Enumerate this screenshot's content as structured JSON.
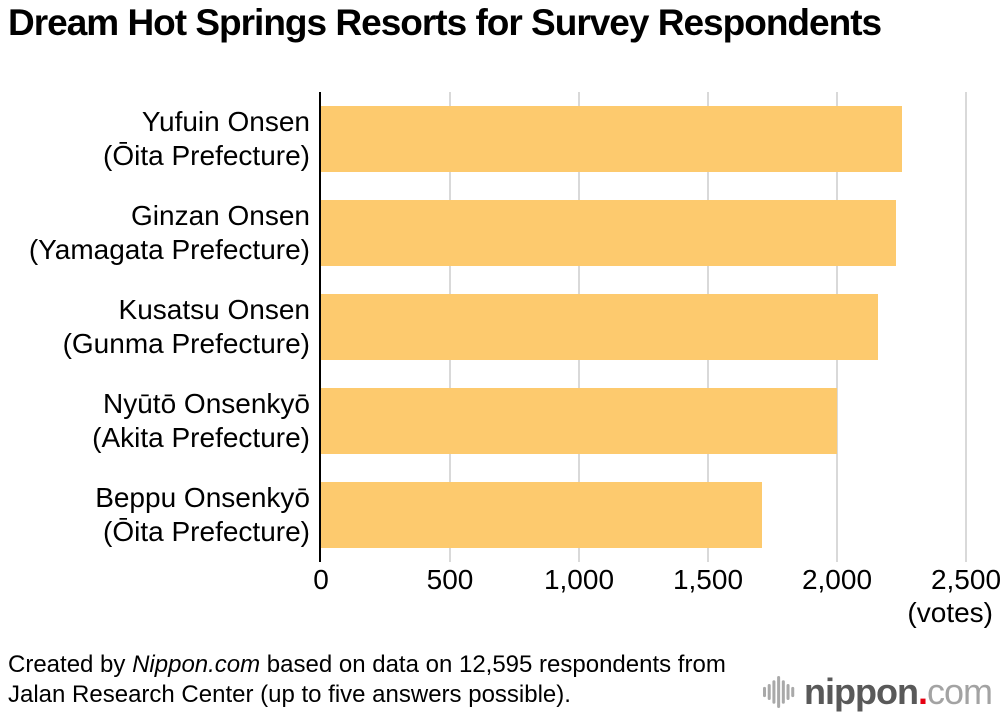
{
  "title": "Dream Hot Springs Resorts for Survey Respondents",
  "chart_data": {
    "type": "bar",
    "orientation": "horizontal",
    "title": "Dream Hot Springs Resorts for Survey Respondents",
    "xlabel": "",
    "ylabel": "",
    "unit": "(votes)",
    "xlim": [
      0,
      2500
    ],
    "grid": true,
    "legend": false,
    "bar_color": "#FDCA6E",
    "gridline_color": "#D9D9D9",
    "axis_color": "#000000",
    "x_ticks": [
      {
        "value": 0,
        "label": "0"
      },
      {
        "value": 500,
        "label": "500"
      },
      {
        "value": 1000,
        "label": "1,000"
      },
      {
        "value": 1500,
        "label": "1,500"
      },
      {
        "value": 2000,
        "label": "2,000"
      },
      {
        "value": 2500,
        "label": "2,500"
      }
    ],
    "bars": [
      {
        "name": "Yufuin Onsen",
        "region": "(Ōita Prefecture)",
        "votes": 2250
      },
      {
        "name": "Ginzan Onsen",
        "region": "(Yamagata Prefecture)",
        "votes": 2230
      },
      {
        "name": "Kusatsu Onsen",
        "region": "(Gunma Prefecture)",
        "votes": 2160
      },
      {
        "name": "Nyūtō Onsenkyō",
        "region": "(Akita Prefecture)",
        "votes": 2000
      },
      {
        "name": "Beppu Onsenkyō",
        "region": "(Ōita Prefecture)",
        "votes": 1710
      }
    ]
  },
  "footer": {
    "prefix": "Created by ",
    "brand": "Nippon.com",
    "line1_rest": " based on data on 12,595 respondents from",
    "line2": "Jalan Research Center (up to five answers possible)."
  },
  "logo": {
    "brand": "nippon",
    "dot": ".",
    "tld": "com",
    "icon": "soundwave-bars-icon",
    "icon_color": "#A9A9A9",
    "brand_color": "#595959",
    "dot_color": "#E60012",
    "tld_color": "#A3A3A3"
  }
}
